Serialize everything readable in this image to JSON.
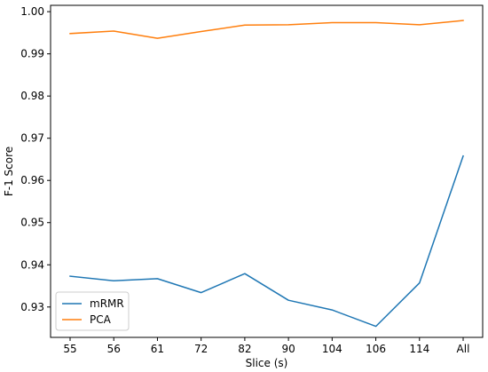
{
  "chart_data": {
    "type": "line",
    "title": "",
    "xlabel": "Slice (s)",
    "ylabel": "F-1 Score",
    "categories": [
      "55",
      "56",
      "61",
      "72",
      "82",
      "90",
      "104",
      "106",
      "114",
      "All"
    ],
    "ylim": [
      0.9228,
      1.0015
    ],
    "yticks": [
      0.93,
      0.94,
      0.95,
      0.96,
      0.97,
      0.98,
      0.99,
      1.0
    ],
    "ytick_labels": [
      "0.93",
      "0.94",
      "0.95",
      "0.96",
      "0.97",
      "0.98",
      "0.99",
      "1.00"
    ],
    "grid": false,
    "legend_position": "lower-left",
    "series": [
      {
        "name": "mRMR",
        "color": "#1f77b4",
        "values": [
          0.9373,
          0.9362,
          0.9367,
          0.9334,
          0.9379,
          0.9316,
          0.9293,
          0.9254,
          0.9357,
          0.9658
        ]
      },
      {
        "name": "PCA",
        "color": "#ff7f0e",
        "values": [
          0.9948,
          0.9954,
          0.9937,
          0.9953,
          0.9968,
          0.9969,
          0.9974,
          0.9974,
          0.9969,
          0.9979
        ]
      }
    ]
  }
}
